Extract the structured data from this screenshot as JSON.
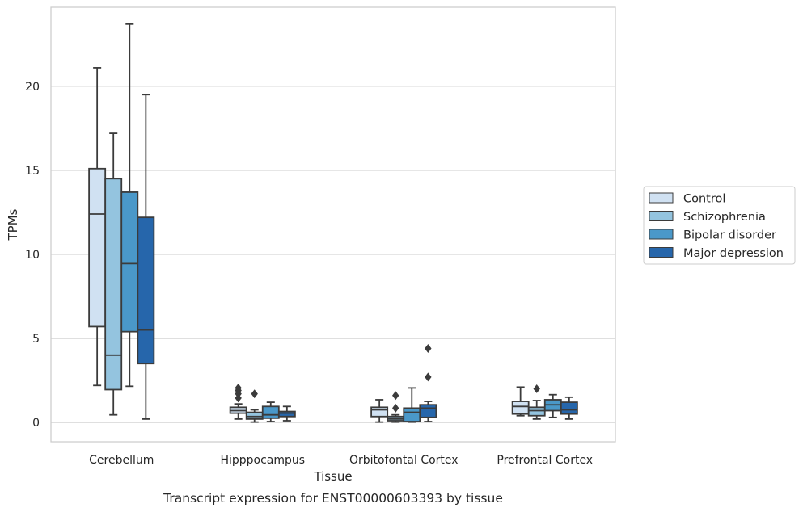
{
  "chart_data": {
    "type": "boxplot",
    "title": "",
    "caption": "Transcript expression for ENST00000603393 by tissue",
    "xlabel": "Tissue",
    "ylabel": "TPMs",
    "ylim": [
      -1.15,
      24.7
    ],
    "yticks": [
      0,
      5,
      10,
      15,
      20
    ],
    "grid": "horizontal",
    "legend_position": "right",
    "categories": [
      "Cerebellum",
      "Hipppocampus",
      "Orbitofontal Cortex",
      "Prefrontal Cortex"
    ],
    "series": [
      {
        "name": "Control",
        "color": "#d0e1f2",
        "boxes": [
          {
            "whislo": 2.2,
            "q1": 5.7,
            "med": 12.4,
            "q3": 15.1,
            "whishi": 21.1,
            "fliers": []
          },
          {
            "whislo": 0.2,
            "q1": 0.55,
            "med": 0.7,
            "q3": 0.9,
            "whishi": 1.1,
            "fliers": [
              1.45,
              1.7,
              1.9,
              2.05
            ]
          },
          {
            "whislo": 0.02,
            "q1": 0.35,
            "med": 0.75,
            "q3": 0.9,
            "whishi": 1.35,
            "fliers": []
          },
          {
            "whislo": 0.4,
            "q1": 0.5,
            "med": 0.95,
            "q3": 1.25,
            "whishi": 2.1,
            "fliers": []
          }
        ]
      },
      {
        "name": "Schizophrenia",
        "color": "#94c4df",
        "boxes": [
          {
            "whislo": 0.45,
            "q1": 1.95,
            "med": 4.0,
            "q3": 14.5,
            "whishi": 17.2,
            "fliers": []
          },
          {
            "whislo": 0.02,
            "q1": 0.2,
            "med": 0.35,
            "q3": 0.6,
            "whishi": 0.75,
            "fliers": [
              1.7
            ]
          },
          {
            "whislo": 0.02,
            "q1": 0.1,
            "med": 0.2,
            "q3": 0.35,
            "whishi": 0.45,
            "fliers": [
              0.85,
              1.6
            ]
          },
          {
            "whislo": 0.2,
            "q1": 0.4,
            "med": 0.7,
            "q3": 0.9,
            "whishi": 1.3,
            "fliers": [
              2.0
            ]
          }
        ]
      },
      {
        "name": "Bipolar disorder",
        "color": "#4a98c9",
        "boxes": [
          {
            "whislo": 2.15,
            "q1": 5.4,
            "med": 9.45,
            "q3": 13.7,
            "whishi": 23.7,
            "fliers": []
          },
          {
            "whislo": 0.05,
            "q1": 0.25,
            "med": 0.45,
            "q3": 0.95,
            "whishi": 1.2,
            "fliers": []
          },
          {
            "whislo": 0.02,
            "q1": 0.05,
            "med": 0.6,
            "q3": 0.85,
            "whishi": 2.05,
            "fliers": []
          },
          {
            "whislo": 0.3,
            "q1": 0.7,
            "med": 1.05,
            "q3": 1.35,
            "whishi": 1.65,
            "fliers": []
          }
        ]
      },
      {
        "name": "Major depression",
        "color": "#2666ab",
        "boxes": [
          {
            "whislo": 0.2,
            "q1": 3.5,
            "med": 5.5,
            "q3": 12.2,
            "whishi": 19.5,
            "fliers": []
          },
          {
            "whislo": 0.1,
            "q1": 0.35,
            "med": 0.55,
            "q3": 0.65,
            "whishi": 0.95,
            "fliers": []
          },
          {
            "whislo": 0.05,
            "q1": 0.3,
            "med": 0.85,
            "q3": 1.05,
            "whishi": 1.25,
            "fliers": [
              2.7,
              4.4
            ]
          },
          {
            "whislo": 0.2,
            "q1": 0.5,
            "med": 0.75,
            "q3": 1.2,
            "whishi": 1.5,
            "fliers": []
          }
        ]
      }
    ]
  }
}
